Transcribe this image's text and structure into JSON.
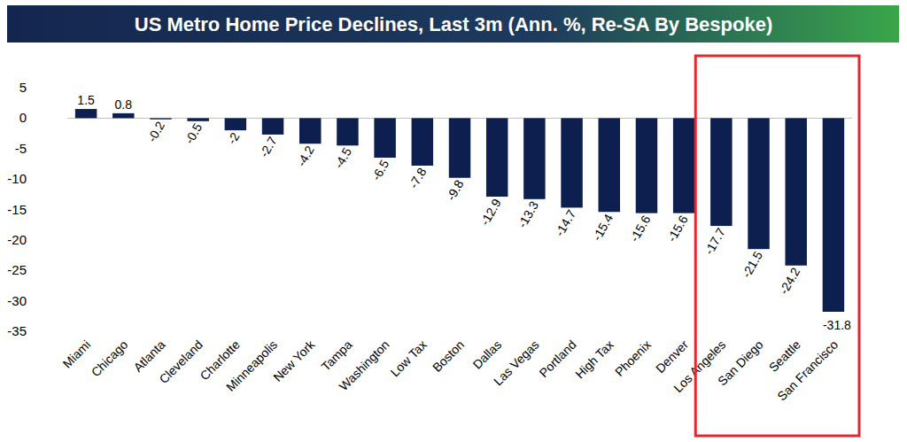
{
  "chart_data": {
    "type": "bar",
    "title": "US Metro Home Price Declines, Last 3m (Ann. %, Re-SA By Bespoke)",
    "categories": [
      "Miami",
      "Chicago",
      "Atlanta",
      "Cleveland",
      "Charlotte",
      "Minneapolis",
      "New York",
      "Tampa",
      "Washington",
      "Low Tax",
      "Boston",
      "Dallas",
      "Las Vegas",
      "Portland",
      "High Tax",
      "Phoenix",
      "Denver",
      "Los Angeles",
      "San Diego",
      "Seattle",
      "San Francisco"
    ],
    "values": [
      1.5,
      0.8,
      -0.2,
      -0.5,
      -2.0,
      -2.7,
      -4.2,
      -4.5,
      -6.5,
      -7.8,
      -9.8,
      -12.9,
      -13.3,
      -14.7,
      -15.4,
      -15.6,
      -15.6,
      -17.7,
      -21.5,
      -24.2,
      -31.8
    ],
    "color": "#0c1f4f",
    "ylim": [
      -35,
      5
    ],
    "yticks": [
      -35,
      -30,
      -25,
      -20,
      -15,
      -10,
      -5,
      0,
      5
    ],
    "grid": false,
    "data_labels": true
  }
}
